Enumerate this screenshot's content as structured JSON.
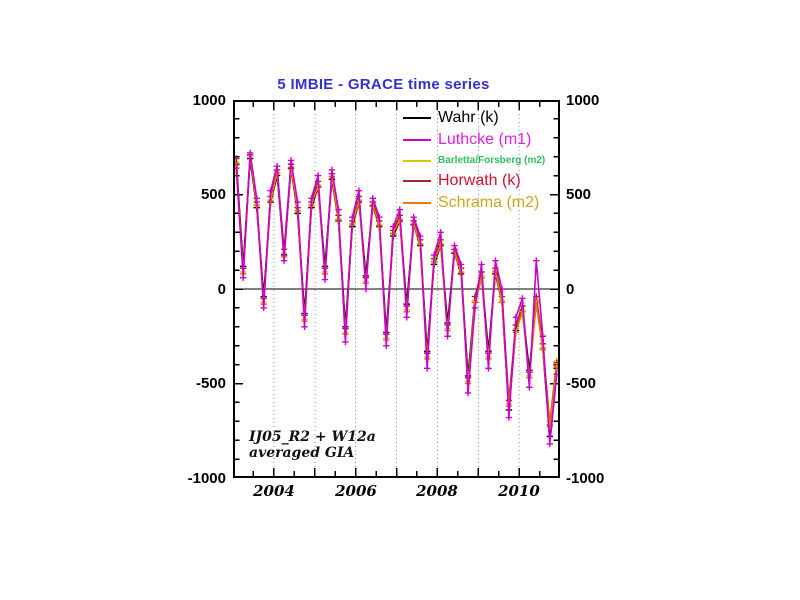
{
  "title": {
    "text": "5 IMBIE - GRACE time series",
    "color": "#3333cc"
  },
  "annotation": {
    "line1": "IJ05_R2 + W12a",
    "line2": "averaged GIA"
  },
  "axes": {
    "y_tick_labels": [
      "1000",
      "500",
      "0",
      "-500",
      "-1000"
    ],
    "x_tick_labels": [
      "2004",
      "2006",
      "2008",
      "2010"
    ],
    "x_range": [
      2003,
      2011
    ],
    "y_range": [
      -1000,
      1000
    ]
  },
  "colors": {
    "grid": "#888888",
    "frame": "#000000",
    "zero_line": "#000000"
  },
  "chart_data": {
    "type": "line",
    "title": "5 IMBIE - GRACE time series",
    "xlabel": "",
    "ylabel": "",
    "xlim": [
      2003,
      2011
    ],
    "ylim": [
      -1000,
      1000
    ],
    "grid": "vertical dotted gridlines at each year",
    "legend_position": "top-right inside plot",
    "marker": "plus",
    "x": [
      2003.08,
      2003.25,
      2003.42,
      2003.58,
      2003.75,
      2003.92,
      2004.08,
      2004.25,
      2004.42,
      2004.58,
      2004.75,
      2004.92,
      2005.08,
      2005.25,
      2005.42,
      2005.58,
      2005.75,
      2005.92,
      2006.08,
      2006.25,
      2006.42,
      2006.58,
      2006.75,
      2006.92,
      2007.08,
      2007.25,
      2007.42,
      2007.58,
      2007.75,
      2007.92,
      2008.08,
      2008.25,
      2008.42,
      2008.58,
      2008.75,
      2008.92,
      2009.08,
      2009.25,
      2009.42,
      2009.58,
      2009.75,
      2009.92,
      2010.08,
      2010.25,
      2010.42,
      2010.58,
      2010.75,
      2010.92
    ],
    "series": [
      {
        "name": "Wahr (k)",
        "line_color": "#000000",
        "text_color": "#000000",
        "values": [
          660,
          120,
          690,
          430,
          -40,
          460,
          600,
          180,
          640,
          400,
          -130,
          430,
          540,
          120,
          580,
          360,
          -200,
          330,
          460,
          70,
          440,
          330,
          -230,
          280,
          360,
          -80,
          340,
          230,
          -330,
          130,
          230,
          -180,
          190,
          80,
          -460,
          -70,
          60,
          -330,
          80,
          -70,
          -640,
          -220,
          -120,
          -430,
          -70,
          -320,
          -780,
          -420
        ]
      },
      {
        "name": "Luthcke (m1)",
        "line_color": "#cc00cc",
        "text_color": "#dd22dd",
        "values": [
          640,
          60,
          720,
          480,
          -100,
          520,
          650,
          150,
          680,
          460,
          -200,
          480,
          600,
          50,
          630,
          420,
          -280,
          380,
          520,
          0,
          480,
          380,
          -300,
          330,
          420,
          -150,
          380,
          280,
          -420,
          180,
          300,
          -250,
          230,
          130,
          -550,
          -100,
          130,
          -420,
          150,
          0,
          -680,
          -150,
          -50,
          -520,
          150,
          -250,
          -820,
          -450
        ]
      },
      {
        "name": "Barletta/Forsberg (m2)",
        "line_color": "#cccc00",
        "text_color": "#33bb66",
        "values": [
          670,
          90,
          690,
          440,
          -70,
          470,
          610,
          190,
          630,
          410,
          -160,
          440,
          550,
          90,
          590,
          370,
          -230,
          340,
          470,
          40,
          440,
          340,
          -260,
          290,
          370,
          -110,
          340,
          240,
          -360,
          140,
          240,
          -210,
          190,
          90,
          -490,
          -60,
          70,
          -360,
          90,
          -60,
          -610,
          -210,
          -110,
          -460,
          -60,
          -310,
          -700,
          -380
        ]
      },
      {
        "name": "Horwath (k)",
        "line_color": "#aa2233",
        "text_color": "#cc1133",
        "values": [
          690,
          110,
          710,
          460,
          -50,
          490,
          630,
          210,
          660,
          430,
          -140,
          460,
          570,
          110,
          610,
          390,
          -210,
          360,
          490,
          60,
          460,
          360,
          -240,
          310,
          390,
          -90,
          360,
          260,
          -340,
          160,
          260,
          -190,
          210,
          110,
          -470,
          -40,
          90,
          -340,
          110,
          -40,
          -590,
          -190,
          -90,
          -440,
          -40,
          -290,
          -720,
          -390
        ]
      },
      {
        "name": "Schrama (m2)",
        "line_color": "#ee7711",
        "text_color": "#c8a818",
        "values": [
          655,
          80,
          705,
          445,
          -80,
          465,
          615,
          170,
          645,
          415,
          -170,
          445,
          545,
          80,
          595,
          365,
          -240,
          345,
          465,
          30,
          445,
          335,
          -270,
          295,
          365,
          -120,
          345,
          235,
          -370,
          145,
          235,
          -220,
          195,
          85,
          -500,
          -70,
          60,
          -370,
          95,
          -70,
          -620,
          -230,
          -120,
          -470,
          -70,
          -320,
          -730,
          -410
        ]
      }
    ]
  }
}
